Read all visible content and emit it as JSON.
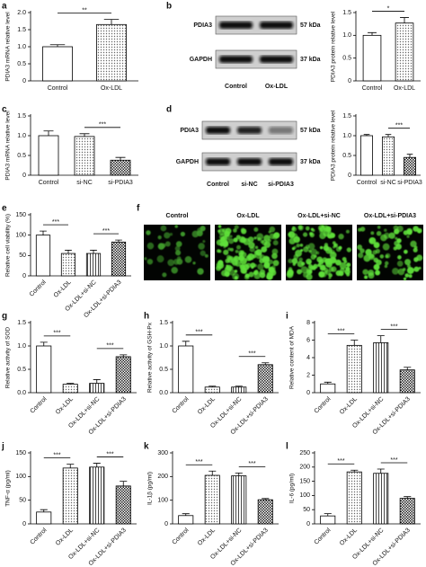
{
  "chart_data": [
    {
      "type": "bar",
      "label": "a",
      "ylabel": "PDIA3 mRNA relative level",
      "categories": [
        "Control",
        "Ox-LDL"
      ],
      "values": [
        1.0,
        1.65
      ],
      "errors": [
        0.06,
        0.15
      ],
      "bar_fills": [
        "white",
        "dots"
      ],
      "ylim": [
        0,
        2.0
      ],
      "yticks": [
        0,
        0.5,
        {
          "value": 1.0,
          "label": "1.0"
        },
        1.5,
        {
          "value": 2.0,
          "label": "2.0"
        }
      ],
      "significance": [
        "**"
      ]
    },
    {
      "type": "bar",
      "ylabel": "PDIA3 protein relative level",
      "categories": [
        "Control",
        "Ox-LDL"
      ],
      "values": [
        1.0,
        1.27
      ],
      "errors": [
        0.06,
        0.12
      ],
      "bar_fills": [
        "white",
        "dots"
      ],
      "ylim": [
        0,
        1.5
      ],
      "yticks": [
        0,
        0.5,
        {
          "value": 1.0,
          "label": "1.0"
        },
        1.5
      ],
      "significance": [
        "*"
      ]
    },
    {
      "type": "bar",
      "label": "c",
      "ylabel": "PDIA3 mRNA relative level",
      "categories": [
        "Control",
        "si-NC",
        "si-PDIA3"
      ],
      "values": [
        1.0,
        0.98,
        0.38
      ],
      "errors": [
        0.12,
        0.07,
        0.07
      ],
      "bar_fills": [
        "white",
        "dots",
        "checks"
      ],
      "ylim": [
        0,
        1.5
      ],
      "yticks": [
        0,
        0.5,
        {
          "value": 1.0,
          "label": "1.0"
        },
        1.5
      ],
      "significance": [
        "***"
      ]
    },
    {
      "type": "bar",
      "ylabel": "PDIA3 protein relative level",
      "categories": [
        "Control",
        "si-NC",
        "si-PDIA3"
      ],
      "values": [
        1.0,
        0.97,
        0.45
      ],
      "errors": [
        0.03,
        0.06,
        0.08
      ],
      "bar_fills": [
        "white",
        "dots",
        "checks"
      ],
      "ylim": [
        0,
        1.5
      ],
      "yticks": [
        0,
        0.5,
        {
          "value": 1.0,
          "label": "1.0"
        },
        1.5
      ],
      "significance": [
        "***"
      ]
    },
    {
      "type": "bar",
      "label": "e",
      "ylabel": "Relative cell viability (%)",
      "categories": [
        "Control",
        "Ox-LDL",
        "Ox-LDL+si-NC",
        "Ox-LDL+si-PDIA3"
      ],
      "values": [
        100,
        55,
        55,
        83
      ],
      "errors": [
        10,
        8,
        8,
        5
      ],
      "bar_fills": [
        "white",
        "dots",
        "stripes",
        "checks"
      ],
      "ylim": [
        0,
        150
      ],
      "yticks": [
        0,
        50,
        100,
        150
      ],
      "significance": [
        "***",
        "***"
      ]
    },
    {
      "type": "bar",
      "label": "g",
      "ylabel": "Relative activity of SOD",
      "categories": [
        "Control",
        "Ox-LDL",
        "Ox-LDL+si-NC",
        "Ox-LDL+si-PDIA3"
      ],
      "values": [
        1.0,
        0.18,
        0.2,
        0.77
      ],
      "errors": [
        0.08,
        0.02,
        0.08,
        0.04
      ],
      "bar_fills": [
        "white",
        "dots",
        "stripes",
        "checks"
      ],
      "ylim": [
        0,
        1.5
      ],
      "yticks": [
        {
          "value": 0,
          "label": "0.0"
        },
        0.5,
        {
          "value": 1.0,
          "label": "1.0"
        },
        1.5
      ],
      "significance": [
        "***",
        "***"
      ]
    },
    {
      "type": "bar",
      "label": "h",
      "ylabel": "Relative activity of GSH-Px",
      "categories": [
        "Control",
        "Ox-LDL",
        "Ox-LDL+si-NC",
        "Ox-LDL+si-PDIA3"
      ],
      "values": [
        1.0,
        0.12,
        0.12,
        0.6
      ],
      "errors": [
        0.1,
        0.02,
        0.02,
        0.04
      ],
      "bar_fills": [
        "white",
        "dots",
        "stripes",
        "checks"
      ],
      "ylim": [
        0,
        1.5
      ],
      "yticks": [
        {
          "value": 0,
          "label": "0.0"
        },
        0.5,
        {
          "value": 1.0,
          "label": "1.0"
        },
        1.5
      ],
      "significance": [
        "***",
        "***"
      ]
    },
    {
      "type": "bar",
      "label": "i",
      "ylabel": "Relative content of MDA",
      "categories": [
        "Control",
        "Ox-LDL",
        "Ox-LDL+si-NC",
        "Ox-LDL+si-PDIA3"
      ],
      "values": [
        1.0,
        5.4,
        5.7,
        2.6
      ],
      "errors": [
        0.2,
        0.6,
        0.8,
        0.3
      ],
      "bar_fills": [
        "white",
        "dots",
        "stripes",
        "checks"
      ],
      "ylim": [
        0,
        8
      ],
      "yticks": [
        0,
        2,
        4,
        6,
        8
      ],
      "significance": [
        "***",
        "***"
      ]
    },
    {
      "type": "bar",
      "label": "j",
      "ylabel": "TNF-α (pg/ml)",
      "categories": [
        "Control",
        "Ox-LDL",
        "Ox-LDL+si-NC",
        "Ox-LDL+si-PDIA3"
      ],
      "values": [
        25,
        118,
        120,
        80
      ],
      "errors": [
        5,
        8,
        8,
        10
      ],
      "bar_fills": [
        "white",
        "dots",
        "stripes",
        "checks"
      ],
      "ylim": [
        0,
        150
      ],
      "yticks": [
        0,
        50,
        100,
        150
      ],
      "significance": [
        "***",
        "***"
      ]
    },
    {
      "type": "bar",
      "label": "k",
      "ylabel": "IL-1β (pg/ml)",
      "categories": [
        "Control",
        "Ox-LDL",
        "Ox-LDL+si-NC",
        "Ox-LDL+si-PDIA3"
      ],
      "values": [
        35,
        205,
        203,
        102
      ],
      "errors": [
        8,
        18,
        12,
        5
      ],
      "bar_fills": [
        "white",
        "dots",
        "stripes",
        "checks"
      ],
      "ylim": [
        0,
        300
      ],
      "yticks": [
        0,
        100,
        200,
        300
      ],
      "significance": [
        "***",
        "***"
      ]
    },
    {
      "type": "bar",
      "label": "l",
      "ylabel": "IL-6 (pg/ml)",
      "categories": [
        "Control",
        "Ox-LDL",
        "Ox-LDL+si-NC",
        "Ox-LDL+si-PDIA3"
      ],
      "values": [
        28,
        183,
        178,
        90
      ],
      "errors": [
        8,
        6,
        15,
        6
      ],
      "bar_fills": [
        "white",
        "dots",
        "stripes",
        "checks"
      ],
      "ylim": [
        0,
        250
      ],
      "yticks": [
        0,
        50,
        100,
        150,
        200,
        250
      ],
      "significance": [
        "***",
        "***"
      ]
    }
  ],
  "blots": [
    {
      "label": "b",
      "rows": [
        {
          "protein": "PDIA3",
          "size": "57 kDa"
        },
        {
          "protein": "GAPDH",
          "size": "37 kDa"
        }
      ],
      "lanes": [
        "Control",
        "Ox-LDL"
      ]
    },
    {
      "label": "d",
      "rows": [
        {
          "protein": "PDIA3",
          "size": "57 kDa"
        },
        {
          "protein": "GAPDH",
          "size": "37 kDa"
        }
      ],
      "lanes": [
        "Control",
        "si-NC",
        "si-PDIA3"
      ]
    }
  ],
  "images": {
    "label": "f",
    "panels": [
      "Control",
      "Ox-LDL",
      "Ox-LDL+si-NC",
      "Ox-LDL+si-PDIA3"
    ]
  }
}
